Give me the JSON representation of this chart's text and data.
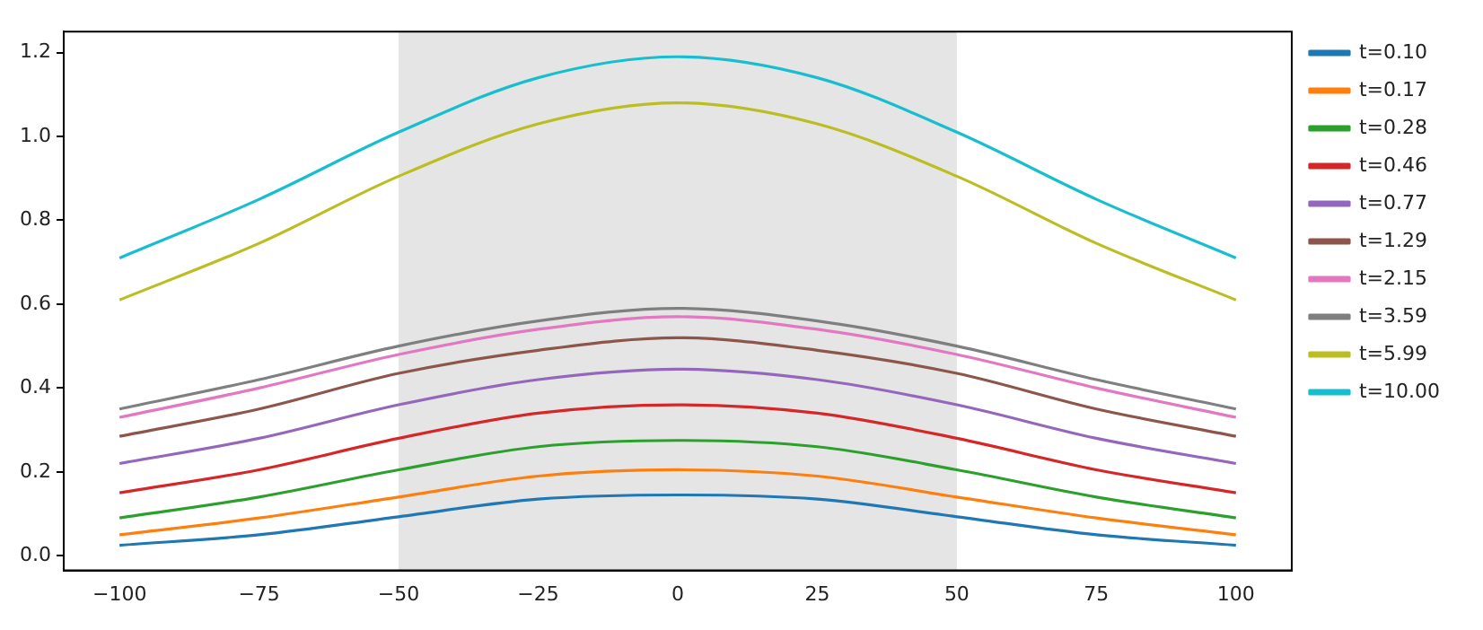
{
  "chart_data": {
    "type": "line",
    "x": [
      -100,
      -75,
      -50,
      -25,
      0,
      25,
      50,
      75,
      100
    ],
    "series": [
      {
        "name": "t=0.10",
        "color": "#1f77b4",
        "values": [
          0.025,
          0.05,
          0.093,
          0.135,
          0.145,
          0.135,
          0.093,
          0.05,
          0.025
        ]
      },
      {
        "name": "t=0.17",
        "color": "#ff7f0e",
        "values": [
          0.05,
          0.09,
          0.14,
          0.19,
          0.205,
          0.19,
          0.14,
          0.09,
          0.05
        ]
      },
      {
        "name": "t=0.28",
        "color": "#2ca02c",
        "values": [
          0.09,
          0.14,
          0.205,
          0.26,
          0.275,
          0.26,
          0.205,
          0.14,
          0.09
        ]
      },
      {
        "name": "t=0.46",
        "color": "#d62728",
        "values": [
          0.15,
          0.205,
          0.28,
          0.34,
          0.36,
          0.34,
          0.28,
          0.205,
          0.15
        ]
      },
      {
        "name": "t=0.77",
        "color": "#9467bd",
        "values": [
          0.22,
          0.28,
          0.36,
          0.42,
          0.445,
          0.42,
          0.36,
          0.28,
          0.22
        ]
      },
      {
        "name": "t=1.29",
        "color": "#8c564b",
        "values": [
          0.285,
          0.35,
          0.435,
          0.49,
          0.52,
          0.49,
          0.435,
          0.35,
          0.285
        ]
      },
      {
        "name": "t=2.15",
        "color": "#e377c2",
        "values": [
          0.33,
          0.4,
          0.48,
          0.54,
          0.57,
          0.54,
          0.48,
          0.4,
          0.33
        ]
      },
      {
        "name": "t=3.59",
        "color": "#7f7f7f",
        "values": [
          0.35,
          0.42,
          0.5,
          0.56,
          0.59,
          0.56,
          0.5,
          0.42,
          0.35
        ]
      },
      {
        "name": "t=5.99",
        "color": "#bcbd22",
        "values": [
          0.61,
          0.745,
          0.905,
          1.03,
          1.08,
          1.03,
          0.905,
          0.745,
          0.61
        ]
      },
      {
        "name": "t=10.00",
        "color": "#17becf",
        "values": [
          0.71,
          0.85,
          1.01,
          1.14,
          1.19,
          1.14,
          1.01,
          0.85,
          0.71
        ]
      }
    ],
    "xlim": [
      -110,
      110
    ],
    "xticks": [
      -100,
      -75,
      -50,
      -25,
      0,
      25,
      50,
      75,
      100
    ],
    "ylim": [
      -0.035,
      1.25
    ],
    "yticks": [
      {
        "value": 0,
        "label": "0.0"
      },
      {
        "value": 0.2,
        "label": "0.2"
      },
      {
        "value": 0.4,
        "label": "0.4"
      },
      {
        "value": 0.6,
        "label": "0.6"
      },
      {
        "value": 0.8,
        "label": "0.8"
      },
      {
        "value": 1.0,
        "label": "1.0"
      },
      {
        "value": 1.2,
        "label": "1.2"
      }
    ],
    "bands": [
      {
        "axis": "x",
        "from": -50,
        "to": 50,
        "color": "#e5e5e5"
      }
    ],
    "legend": "top right",
    "grid": false,
    "marker": "none",
    "line_style": "solid"
  }
}
